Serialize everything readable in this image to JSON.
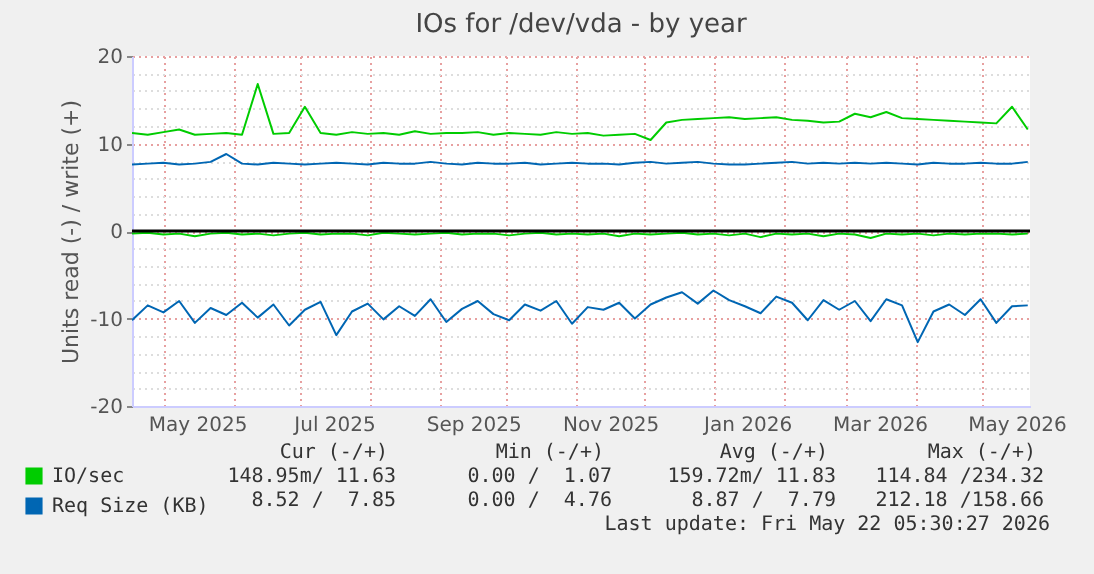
{
  "chart_data": {
    "type": "line",
    "title": "IOs for /dev/vda - by year",
    "ylabel": "Units read (-) / write (+)",
    "x": [
      "2025-04-17",
      "2025-04-24",
      "2025-05-01",
      "2025-05-08",
      "2025-05-15",
      "2025-05-22",
      "2025-05-29",
      "2025-06-05",
      "2025-06-12",
      "2025-06-19",
      "2025-06-26",
      "2025-07-03",
      "2025-07-10",
      "2025-07-17",
      "2025-07-24",
      "2025-07-31",
      "2025-08-07",
      "2025-08-14",
      "2025-08-21",
      "2025-08-28",
      "2025-09-04",
      "2025-09-11",
      "2025-09-18",
      "2025-09-25",
      "2025-10-02",
      "2025-10-09",
      "2025-10-16",
      "2025-10-23",
      "2025-10-30",
      "2025-11-06",
      "2025-11-13",
      "2025-11-20",
      "2025-11-27",
      "2025-12-04",
      "2025-12-11",
      "2025-12-18",
      "2025-12-25",
      "2026-01-01",
      "2026-01-08",
      "2026-01-15",
      "2026-01-22",
      "2026-01-29",
      "2026-02-05",
      "2026-02-12",
      "2026-02-19",
      "2026-02-26",
      "2026-03-05",
      "2026-03-12",
      "2026-03-19",
      "2026-03-26",
      "2026-04-02",
      "2026-04-09",
      "2026-04-16",
      "2026-04-23",
      "2026-04-30",
      "2026-05-07",
      "2026-05-14",
      "2026-05-21"
    ],
    "series": [
      {
        "name": "IO/sec",
        "color": "#00cc00",
        "values": [
          11.2,
          11.0,
          11.3,
          11.6,
          11.0,
          11.1,
          11.2,
          11.0,
          16.8,
          11.1,
          11.2,
          14.2,
          11.2,
          11.0,
          11.3,
          11.1,
          11.2,
          11.0,
          11.4,
          11.1,
          11.2,
          11.2,
          11.3,
          11.0,
          11.2,
          11.1,
          11.0,
          11.3,
          11.1,
          11.2,
          10.9,
          11.0,
          11.1,
          10.4,
          12.4,
          12.7,
          12.8,
          12.9,
          13.0,
          12.8,
          12.9,
          13.0,
          12.7,
          12.6,
          12.4,
          12.5,
          13.4,
          13.0,
          13.6,
          12.9,
          12.8,
          12.7,
          12.6,
          12.5,
          12.4,
          12.3,
          14.2,
          11.6
        ]
      },
      {
        "color": "#00cc00",
        "values": [
          -0.3,
          -0.2,
          -0.4,
          -0.3,
          -0.6,
          -0.3,
          -0.2,
          -0.4,
          -0.3,
          -0.5,
          -0.3,
          -0.2,
          -0.4,
          -0.3,
          -0.3,
          -0.5,
          -0.2,
          -0.3,
          -0.4,
          -0.3,
          -0.2,
          -0.4,
          -0.3,
          -0.3,
          -0.5,
          -0.3,
          -0.2,
          -0.4,
          -0.3,
          -0.4,
          -0.3,
          -0.6,
          -0.3,
          -0.4,
          -0.3,
          -0.2,
          -0.4,
          -0.3,
          -0.5,
          -0.3,
          -0.7,
          -0.3,
          -0.4,
          -0.3,
          -0.6,
          -0.3,
          -0.4,
          -0.8,
          -0.3,
          -0.4,
          -0.3,
          -0.5,
          -0.3,
          -0.4,
          -0.3,
          -0.3,
          -0.4,
          -0.3
        ]
      },
      {
        "name": "Req Size (KB)",
        "color": "#0066b3",
        "values": [
          7.6,
          7.7,
          7.8,
          7.6,
          7.7,
          7.9,
          8.8,
          7.7,
          7.6,
          7.8,
          7.7,
          7.6,
          7.7,
          7.8,
          7.7,
          7.6,
          7.8,
          7.7,
          7.7,
          7.9,
          7.7,
          7.6,
          7.8,
          7.7,
          7.7,
          7.8,
          7.6,
          7.7,
          7.8,
          7.7,
          7.7,
          7.6,
          7.8,
          7.9,
          7.7,
          7.8,
          7.9,
          7.7,
          7.6,
          7.6,
          7.7,
          7.8,
          7.9,
          7.7,
          7.8,
          7.7,
          7.8,
          7.7,
          7.8,
          7.7,
          7.6,
          7.8,
          7.7,
          7.7,
          7.8,
          7.7,
          7.7,
          7.9
        ]
      },
      {
        "color": "#0066b3",
        "values": [
          -10.2,
          -8.5,
          -9.3,
          -8.0,
          -10.5,
          -8.8,
          -9.6,
          -8.2,
          -9.9,
          -8.4,
          -10.8,
          -9.0,
          -8.1,
          -11.9,
          -9.2,
          -8.3,
          -10.1,
          -8.6,
          -9.7,
          -7.8,
          -10.4,
          -8.9,
          -8.0,
          -9.5,
          -10.2,
          -8.4,
          -9.1,
          -8.0,
          -10.6,
          -8.7,
          -9.0,
          -8.2,
          -10.0,
          -8.4,
          -7.6,
          -7.0,
          -8.3,
          -6.8,
          -7.9,
          -8.6,
          -9.4,
          -7.5,
          -8.2,
          -10.2,
          -7.9,
          -9.0,
          -8.0,
          -10.3,
          -7.8,
          -8.5,
          -12.7,
          -9.2,
          -8.4,
          -9.6,
          -7.8,
          -10.5,
          -8.6,
          -8.5
        ]
      }
    ],
    "ylim": [
      -20,
      20
    ],
    "yticks": [
      -20,
      {
        "value": -18,
        "label": null
      },
      {
        "value": -16,
        "label": null
      },
      {
        "value": -14,
        "label": null
      },
      {
        "value": -12,
        "label": null
      },
      -10,
      {
        "value": -8,
        "label": null
      },
      {
        "value": -6,
        "label": null
      },
      {
        "value": -4,
        "label": null
      },
      {
        "value": -2,
        "label": null
      },
      0,
      {
        "value": 2,
        "label": null
      },
      {
        "value": 4,
        "label": null
      },
      {
        "value": 6,
        "label": null
      },
      {
        "value": 8,
        "label": null
      },
      10,
      {
        "value": 12,
        "label": null
      },
      {
        "value": 14,
        "label": null
      },
      {
        "value": 16,
        "label": null
      },
      {
        "value": 18,
        "label": null
      },
      20
    ],
    "xlim": [
      "2025-04-17",
      "2026-05-22"
    ],
    "xticks": [
      {
        "value": "2025-05-01",
        "label": null
      },
      {
        "value": "2025-05-16",
        "label": "May 2025"
      },
      {
        "value": "2025-06-01",
        "label": null
      },
      {
        "value": "2025-07-01",
        "label": null
      },
      {
        "value": "2025-07-16",
        "label": "Jul 2025"
      },
      {
        "value": "2025-08-01",
        "label": null
      },
      {
        "value": "2025-09-01",
        "label": null
      },
      {
        "value": "2025-09-16",
        "label": "Sep 2025"
      },
      {
        "value": "2025-10-01",
        "label": null
      },
      {
        "value": "2025-11-01",
        "label": null
      },
      {
        "value": "2025-11-16",
        "label": "Nov 2025"
      },
      {
        "value": "2025-12-01",
        "label": null
      },
      {
        "value": "2026-01-01",
        "label": null
      },
      {
        "value": "2026-01-16",
        "label": "Jan 2026"
      },
      {
        "value": "2026-02-01",
        "label": null
      },
      {
        "value": "2026-03-01",
        "label": null
      },
      {
        "value": "2026-03-16",
        "label": "Mar 2026"
      },
      {
        "value": "2026-04-01",
        "label": null
      },
      {
        "value": "2026-05-01",
        "label": null
      },
      {
        "value": "2026-05-16",
        "label": "May 2026"
      }
    ],
    "grid": true,
    "legend": "bottom left",
    "ref_lines": [
      {
        "axis": "y",
        "value": 0,
        "color": "#000000"
      }
    ],
    "annotations": [
      "Cur (-/+)",
      "Min (-/+)",
      "Avg (-/+)",
      "Max (-/+)",
      "148.95m/ 11.63",
      "0.00 /  1.07",
      "159.72m/ 11.83",
      "114.84 /234.32",
      "8.52 /  7.85",
      "0.00 /  4.76",
      "8.87 /  7.79",
      "212.18 /158.66",
      "Last update: Fri May 22 05:30:27 2026"
    ]
  }
}
